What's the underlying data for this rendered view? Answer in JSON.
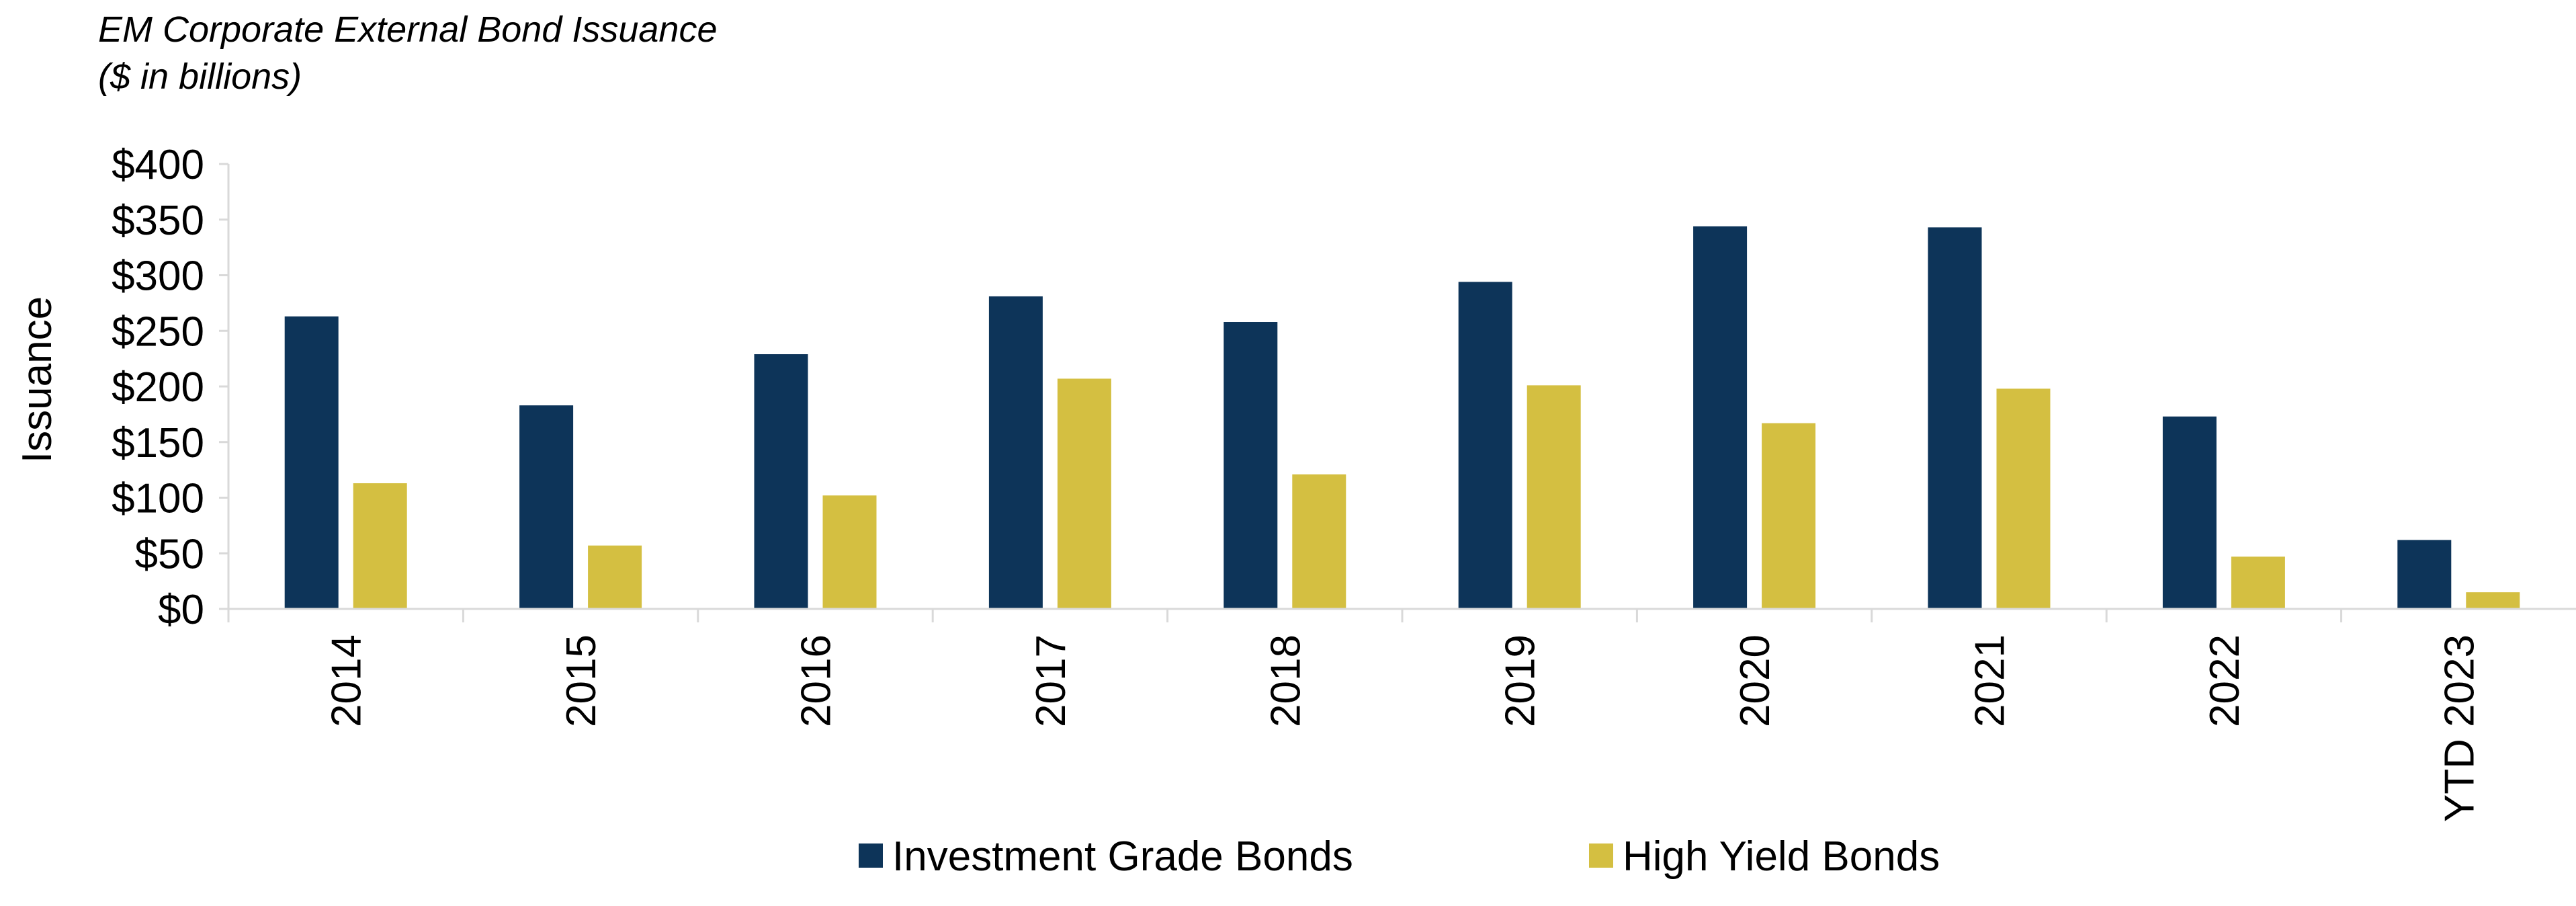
{
  "chart_data": {
    "type": "bar",
    "title": "EM Corporate External Bond Issuance",
    "subtitle": "($ in billions)",
    "ylabel": "Issuance",
    "xlabel": "",
    "ylim": [
      0,
      400
    ],
    "yticks": [
      0,
      50,
      100,
      150,
      200,
      250,
      300,
      350,
      400
    ],
    "ytick_labels": [
      "$0",
      "$50",
      "$100",
      "$150",
      "$200",
      "$250",
      "$300",
      "$350",
      "$400"
    ],
    "grid": false,
    "legend_position": "bottom",
    "categories": [
      "2014",
      "2015",
      "2016",
      "2017",
      "2018",
      "2019",
      "2020",
      "2021",
      "2022",
      "YTD 2023"
    ],
    "series": [
      {
        "name": "Investment Grade Bonds",
        "color": "#0d3459",
        "values": [
          263,
          183,
          229,
          281,
          258,
          294,
          344,
          343,
          173,
          62
        ]
      },
      {
        "name": "High Yield Bonds",
        "color": "#d4bf41",
        "values": [
          113,
          57,
          102,
          207,
          121,
          201,
          167,
          198,
          47,
          15
        ]
      }
    ]
  },
  "colors": {
    "axis": "#d9d9d9",
    "text": "#000000",
    "background": "#ffffff"
  }
}
